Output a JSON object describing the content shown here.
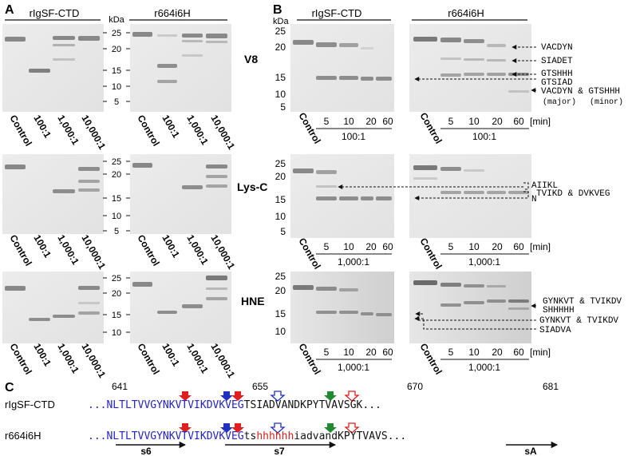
{
  "panel_a": {
    "letter": "A",
    "groups": [
      "rIgSF-CTD",
      "r664i6H"
    ],
    "kda_label": "kDa",
    "enzymes": [
      "V8",
      "Lys-C",
      "HNE"
    ],
    "lane_labels": [
      "Control",
      "100:1",
      "1,000:1",
      "10,000:1"
    ],
    "markers_v8": [
      "25",
      "20",
      "15",
      "10",
      "5"
    ],
    "markers_lysc": [
      "25",
      "20",
      "15",
      "10",
      "5"
    ],
    "markers_hne": [
      "25",
      "20",
      "15",
      "10"
    ]
  },
  "panel_b": {
    "letter": "B",
    "groups": [
      "rIgSF-CTD",
      "r664i6H"
    ],
    "kda_label": "kDa",
    "markers_v8": [
      "25",
      "20",
      "15",
      "10",
      "5"
    ],
    "markers_lysc": [
      "25",
      "20",
      "15",
      "10",
      "5"
    ],
    "markers_hne": [
      "25",
      "20",
      "15",
      "10"
    ],
    "lane_labels": [
      "Control",
      "5",
      "10",
      "20",
      "60"
    ],
    "min_label": "[min]",
    "ratios": [
      "100:1",
      "1,000:1",
      "1,000:1"
    ],
    "annotations_v8": [
      "VACDYN",
      "SIADET",
      "GTSHHH",
      "GTSIAD",
      "VACDYN & GTSHHH"
    ],
    "v8_major": "(major)",
    "v8_minor": "(minor)",
    "annotations_lysc": [
      "AIIKL",
      "N",
      "TVIKD & DVKVEG"
    ],
    "annotations_hne": [
      "GYNKVT & TVIKDV",
      "SHHHHH",
      "GYNKVT & TVIKDV",
      "SIADVA"
    ]
  },
  "panel_c": {
    "letter": "C",
    "positions": [
      "641",
      "655",
      "670",
      "681"
    ],
    "rows": [
      {
        "name": "rIgSF-CTD",
        "blue": "...NLTLTVVGYNKVTVIKDVKVEG",
        "tail_upper": "TSIADVANDKPYTVAVSGK",
        "tail_end": "..."
      },
      {
        "name": "r664i6H",
        "blue": "...NLTLTVVGYNKVTVIKDVKVEG",
        "ts": "ts",
        "his": "hhhhhh",
        "lower": "iadvand",
        "upper": "KPYTVAVS",
        "tail_end": "..."
      }
    ],
    "strands": [
      "s6",
      "s7",
      "sA"
    ]
  },
  "colors": {
    "sequence_blue": "#2323c8",
    "his_red": "#d42020",
    "arrow_red": "#e02020",
    "arrow_blue": "#2030c0",
    "arrow_green": "#208a30"
  }
}
